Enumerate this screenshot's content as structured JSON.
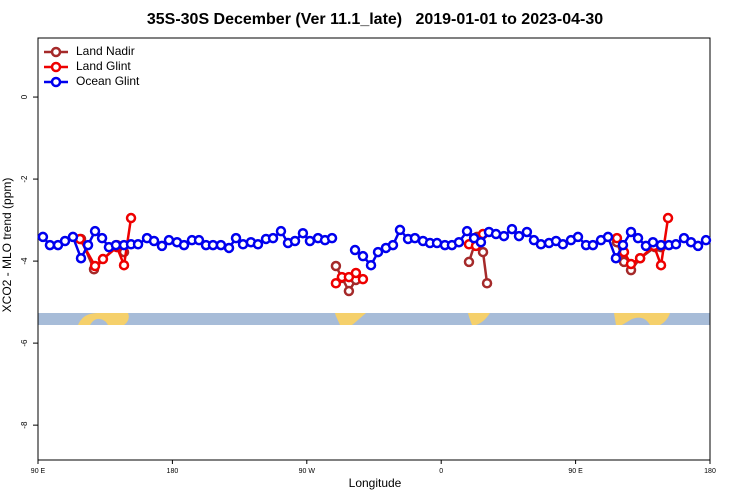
{
  "chart_data": {
    "type": "line",
    "title": "35S-30S December (Ver 11.1_late)   2019-01-01 to 2023-04-30",
    "x_label": "Longitude",
    "y_label": "XCO2 - MLO trend (ppm)",
    "xlim": [
      90,
      540
    ],
    "ylim": [
      -8.85,
      1.44
    ],
    "xticks": [
      {
        "value": 90,
        "label": "90 E"
      },
      {
        "value": 180,
        "label": "180"
      },
      {
        "value": 270,
        "label": "90 W"
      },
      {
        "value": 360,
        "label": "0"
      },
      {
        "value": 450,
        "label": "90 E"
      },
      {
        "value": 540,
        "label": "180"
      }
    ],
    "yticks": [
      0,
      -2,
      -4,
      -6,
      -8
    ],
    "legend": "top-left",
    "series": [
      {
        "name": "Land Nadir",
        "color": "#a52a2a",
        "x": [
          118.8,
          127.5,
          142.9,
          147.6,
          null,
          289.5,
          293.6,
          298.2,
          302.9,
          null,
          378.6,
          384.0,
          388.0,
          390.7,
          null,
          477.7,
          482.4,
          487.1,
          493.2,
          503.2,
          507.2
        ],
        "values": [
          -3.46,
          -4.2,
          -3.61,
          -3.78,
          null,
          -4.12,
          -4.41,
          -4.73,
          -4.46,
          null,
          -4.02,
          -3.41,
          -3.78,
          -4.54,
          null,
          -3.54,
          -4.02,
          -4.22,
          -3.93,
          -3.66,
          -3.66
        ]
      },
      {
        "name": "Land Glint",
        "color": "#ee0000",
        "x": [
          118.1,
          128.2,
          133.5,
          142.9,
          147.6,
          152.3,
          null,
          289.5,
          293.5,
          298.2,
          302.9,
          307.6,
          null,
          378.6,
          383.3,
          388.0,
          null,
          477.7,
          482.4,
          487.1,
          493.2,
          502.5,
          507.2,
          511.9
        ],
        "values": [
          -3.46,
          -4.12,
          -3.95,
          -3.66,
          -4.1,
          -2.95,
          null,
          -4.54,
          -4.39,
          -4.39,
          -4.29,
          -4.44,
          null,
          -3.59,
          -3.63,
          -3.34,
          null,
          -3.44,
          -3.78,
          -4.07,
          -3.93,
          -3.63,
          -4.1,
          -2.95
        ]
      },
      {
        "name": "Ocean Glint",
        "color": "#0000ee",
        "x": [
          93.3,
          98.0,
          103.4,
          108.1,
          113.4,
          118.8,
          123.5,
          128.2,
          132.9,
          137.5,
          142.2,
          147.6,
          152.3,
          157.0,
          163.0,
          167.7,
          173.0,
          177.7,
          183.1,
          187.8,
          193.1,
          197.8,
          202.5,
          207.2,
          212.5,
          217.9,
          222.6,
          227.3,
          232.6,
          237.3,
          242.7,
          247.4,
          252.7,
          257.4,
          262.1,
          267.4,
          272.1,
          277.5,
          282.2,
          286.9,
          null,
          302.3,
          307.6,
          313.0,
          317.7,
          323.0,
          327.7,
          332.4,
          337.8,
          342.4,
          347.8,
          352.5,
          357.2,
          362.5,
          367.2,
          371.9,
          377.3,
          382.0,
          386.6,
          392.0,
          396.7,
          402.0,
          407.4,
          412.1,
          417.4,
          422.1,
          426.8,
          432.2,
          436.9,
          441.5,
          446.9,
          451.6,
          457.0,
          461.6,
          467.0,
          471.7,
          477.0,
          481.7,
          487.1,
          491.8,
          497.1,
          501.8,
          507.2,
          512.5,
          517.2,
          522.6,
          527.3,
          532.0,
          537.3
        ],
        "values": [
          -3.41,
          -3.61,
          -3.61,
          -3.51,
          -3.41,
          -3.93,
          -3.61,
          -3.27,
          -3.44,
          -3.66,
          -3.61,
          -3.61,
          -3.59,
          -3.59,
          -3.44,
          -3.51,
          -3.63,
          -3.49,
          -3.54,
          -3.61,
          -3.49,
          -3.49,
          -3.61,
          -3.61,
          -3.61,
          -3.68,
          -3.44,
          -3.59,
          -3.54,
          -3.59,
          -3.46,
          -3.44,
          -3.27,
          -3.56,
          -3.51,
          -3.32,
          -3.51,
          -3.44,
          -3.49,
          -3.44,
          null,
          -3.73,
          -3.88,
          -4.1,
          -3.78,
          -3.68,
          -3.61,
          -3.24,
          -3.46,
          -3.44,
          -3.51,
          -3.56,
          -3.56,
          -3.61,
          -3.61,
          -3.54,
          -3.27,
          -3.44,
          -3.54,
          -3.29,
          -3.34,
          -3.39,
          -3.22,
          -3.39,
          -3.29,
          -3.49,
          -3.59,
          -3.56,
          -3.51,
          -3.59,
          -3.49,
          -3.41,
          -3.61,
          -3.61,
          -3.49,
          -3.41,
          -3.93,
          -3.61,
          -3.29,
          -3.44,
          -3.63,
          -3.54,
          -3.61,
          -3.61,
          -3.59,
          -3.44,
          -3.54,
          -3.63,
          -3.49
        ]
      }
    ]
  }
}
